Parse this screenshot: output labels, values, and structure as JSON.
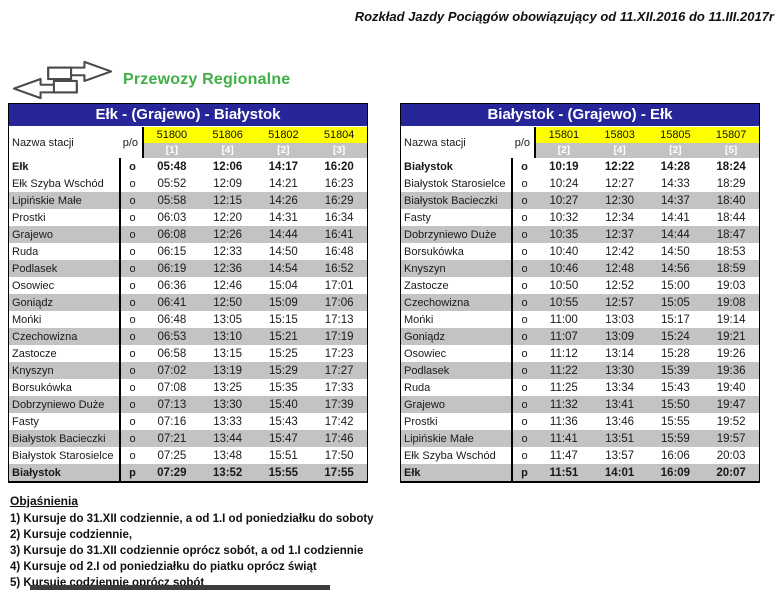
{
  "header": {
    "title": "Rozkład Jazdy Pociągów obowiązujący od  11.XII.2016 do 11.III.2017r",
    "brand": "Przewozy Regionalne"
  },
  "columns": {
    "station_label": "Nazwa stacji",
    "po_label": "p/o"
  },
  "colors": {
    "navy": "#26269A",
    "yellow": "#FFFF00",
    "gray_row": "#C3C3C3",
    "note_ref_text": "#FFFFFF",
    "green": "#3FAF46"
  },
  "tables": [
    {
      "title": "Ełk - (Grajewo) - Białystok",
      "trains": [
        "51800",
        "51806",
        "51802",
        "51804"
      ],
      "notes": [
        "[1]",
        "[4]",
        "[2]",
        "[3]"
      ],
      "rows": [
        {
          "station": "Ełk",
          "po": "o",
          "times": [
            "05:48",
            "12:06",
            "14:17",
            "16:20"
          ],
          "bold": true
        },
        {
          "station": "Ełk Szyba Wschód",
          "po": "o",
          "times": [
            "05:52",
            "12:09",
            "14:21",
            "16:23"
          ],
          "bold": false
        },
        {
          "station": "Lipińskie Małe",
          "po": "o",
          "times": [
            "05:58",
            "12:15",
            "14:26",
            "16:29"
          ],
          "bold": false
        },
        {
          "station": "Prostki",
          "po": "o",
          "times": [
            "06:03",
            "12:20",
            "14:31",
            "16:34"
          ],
          "bold": false
        },
        {
          "station": "Grajewo",
          "po": "o",
          "times": [
            "06:08",
            "12:26",
            "14:44",
            "16:41"
          ],
          "bold": false
        },
        {
          "station": "Ruda",
          "po": "o",
          "times": [
            "06:15",
            "12:33",
            "14:50",
            "16:48"
          ],
          "bold": false
        },
        {
          "station": "Podlasek",
          "po": "o",
          "times": [
            "06:19",
            "12:36",
            "14:54",
            "16:52"
          ],
          "bold": false
        },
        {
          "station": "Osowiec",
          "po": "o",
          "times": [
            "06:36",
            "12:46",
            "15:04",
            "17:01"
          ],
          "bold": false
        },
        {
          "station": "Goniądz",
          "po": "o",
          "times": [
            "06:41",
            "12:50",
            "15:09",
            "17:06"
          ],
          "bold": false
        },
        {
          "station": "Mońki",
          "po": "o",
          "times": [
            "06:48",
            "13:05",
            "15:15",
            "17:13"
          ],
          "bold": false
        },
        {
          "station": "Czechowizna",
          "po": "o",
          "times": [
            "06:53",
            "13:10",
            "15:21",
            "17:19"
          ],
          "bold": false
        },
        {
          "station": "Zastocze",
          "po": "o",
          "times": [
            "06:58",
            "13:15",
            "15:25",
            "17:23"
          ],
          "bold": false
        },
        {
          "station": "Knyszyn",
          "po": "o",
          "times": [
            "07:02",
            "13:19",
            "15:29",
            "17:27"
          ],
          "bold": false
        },
        {
          "station": "Borsukówka",
          "po": "o",
          "times": [
            "07:08",
            "13:25",
            "15:35",
            "17:33"
          ],
          "bold": false
        },
        {
          "station": "Dobrzyniewo Duże",
          "po": "o",
          "times": [
            "07:13",
            "13:30",
            "15:40",
            "17:39"
          ],
          "bold": false
        },
        {
          "station": "Fasty",
          "po": "o",
          "times": [
            "07:16",
            "13:33",
            "15:43",
            "17:42"
          ],
          "bold": false
        },
        {
          "station": "Białystok Bacieczki",
          "po": "o",
          "times": [
            "07:21",
            "13:44",
            "15:47",
            "17:46"
          ],
          "bold": false
        },
        {
          "station": "Białystok Starosielce",
          "po": "o",
          "times": [
            "07:25",
            "13:48",
            "15:51",
            "17:50"
          ],
          "bold": false
        },
        {
          "station": "Białystok",
          "po": "p",
          "times": [
            "07:29",
            "13:52",
            "15:55",
            "17:55"
          ],
          "bold": true
        }
      ]
    },
    {
      "title": "Białystok - (Grajewo) - Ełk",
      "trains": [
        "15801",
        "15803",
        "15805",
        "15807"
      ],
      "notes": [
        "[2]",
        "[4]",
        "[2]",
        "[5]"
      ],
      "rows": [
        {
          "station": "Białystok",
          "po": "o",
          "times": [
            "10:19",
            "12:22",
            "14:28",
            "18:24"
          ],
          "bold": true
        },
        {
          "station": "Białystok Starosielce",
          "po": "o",
          "times": [
            "10:24",
            "12:27",
            "14:33",
            "18:29"
          ],
          "bold": false
        },
        {
          "station": "Białystok Bacieczki",
          "po": "o",
          "times": [
            "10:27",
            "12:30",
            "14:37",
            "18:40"
          ],
          "bold": false
        },
        {
          "station": "Fasty",
          "po": "o",
          "times": [
            "10:32",
            "12:34",
            "14:41",
            "18:44"
          ],
          "bold": false
        },
        {
          "station": "Dobrzyniewo Duże",
          "po": "o",
          "times": [
            "10:35",
            "12:37",
            "14:44",
            "18:47"
          ],
          "bold": false
        },
        {
          "station": "Borsukówka",
          "po": "o",
          "times": [
            "10:40",
            "12:42",
            "14:50",
            "18:53"
          ],
          "bold": false
        },
        {
          "station": "Knyszyn",
          "po": "o",
          "times": [
            "10:46",
            "12:48",
            "14:56",
            "18:59"
          ],
          "bold": false
        },
        {
          "station": "Zastocze",
          "po": "o",
          "times": [
            "10:50",
            "12:52",
            "15:00",
            "19:03"
          ],
          "bold": false
        },
        {
          "station": "Czechowizna",
          "po": "o",
          "times": [
            "10:55",
            "12:57",
            "15:05",
            "19:08"
          ],
          "bold": false
        },
        {
          "station": "Mońki",
          "po": "o",
          "times": [
            "11:00",
            "13:03",
            "15:17",
            "19:14"
          ],
          "bold": false
        },
        {
          "station": "Goniądz",
          "po": "o",
          "times": [
            "11:07",
            "13:09",
            "15:24",
            "19:21"
          ],
          "bold": false
        },
        {
          "station": "Osowiec",
          "po": "o",
          "times": [
            "11:12",
            "13:14",
            "15:28",
            "19:26"
          ],
          "bold": false
        },
        {
          "station": "Podlasek",
          "po": "o",
          "times": [
            "11:22",
            "13:30",
            "15:39",
            "19:36"
          ],
          "bold": false
        },
        {
          "station": "Ruda",
          "po": "o",
          "times": [
            "11:25",
            "13:34",
            "15:43",
            "19:40"
          ],
          "bold": false
        },
        {
          "station": "Grajewo",
          "po": "o",
          "times": [
            "11:32",
            "13:41",
            "15:50",
            "19:47"
          ],
          "bold": false
        },
        {
          "station": "Prostki",
          "po": "o",
          "times": [
            "11:36",
            "13:46",
            "15:55",
            "19:52"
          ],
          "bold": false
        },
        {
          "station": "Lipińskie Małe",
          "po": "o",
          "times": [
            "11:41",
            "13:51",
            "15:59",
            "19:57"
          ],
          "bold": false
        },
        {
          "station": "Ełk Szyba Wschód",
          "po": "o",
          "times": [
            "11:47",
            "13:57",
            "16:06",
            "20:03"
          ],
          "bold": false
        },
        {
          "station": "Ełk",
          "po": "p",
          "times": [
            "11:51",
            "14:01",
            "16:09",
            "20:07"
          ],
          "bold": true
        }
      ]
    }
  ],
  "footnotes": {
    "heading": "Objaśnienia",
    "items": [
      "1)  Kursuje do 31.XII codziennie, a od 1.I od poniedziałku do soboty",
      "2)  Kursuje codziennie,",
      "3)  Kursuje do 31.XII codziennie oprócz sobót, a od 1.I codziennie",
      "4) Kursuje od 2.I od poniedziałku do piatku oprócz świąt",
      "5)  Kursuje codziennie oprócz sobót"
    ]
  }
}
